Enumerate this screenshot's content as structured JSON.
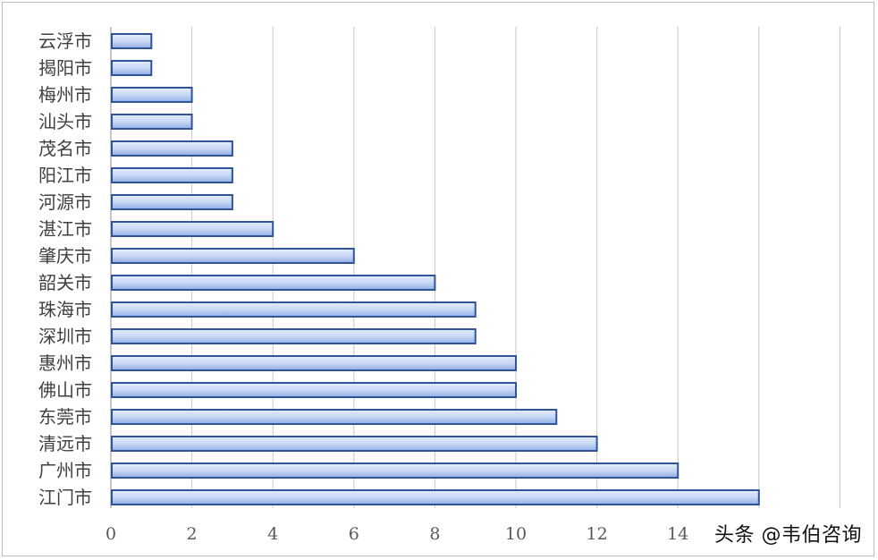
{
  "watermark": "头条 @韦伯咨询",
  "chart_data": {
    "type": "bar",
    "orientation": "horizontal",
    "title": "",
    "xlabel": "",
    "ylabel": "",
    "xlim": [
      0,
      18
    ],
    "x_ticks": [
      "0",
      "2",
      "4",
      "6",
      "8",
      "10",
      "12",
      "14"
    ],
    "grid": true,
    "bar_color": "#9db7e8",
    "bar_border_color": "#2f5597",
    "categories": [
      "云浮市",
      "揭阳市",
      "梅州市",
      "汕头市",
      "茂名市",
      "阳江市",
      "河源市",
      "湛江市",
      "肇庆市",
      "韶关市",
      "珠海市",
      "深圳市",
      "惠州市",
      "佛山市",
      "东莞市",
      "清远市",
      "广州市",
      "江门市"
    ],
    "values": [
      1,
      1,
      2,
      2,
      3,
      3,
      3,
      4,
      6,
      8,
      9,
      9,
      10,
      10,
      11,
      12,
      14,
      16
    ]
  }
}
